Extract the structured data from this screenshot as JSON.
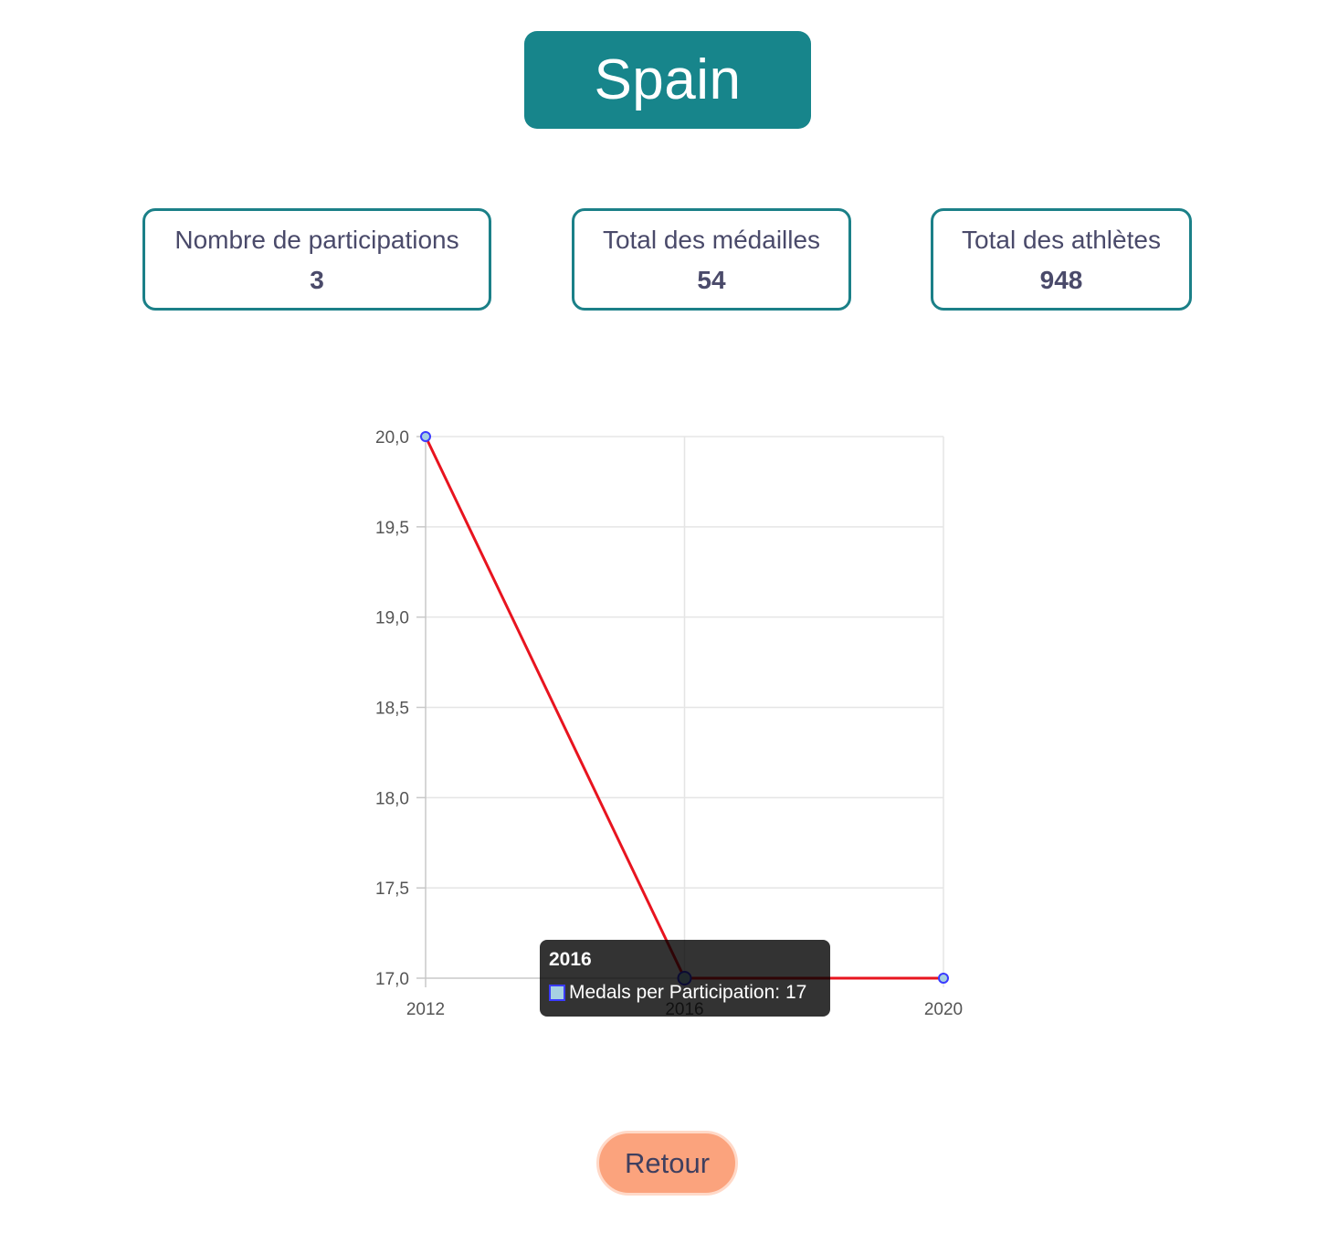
{
  "header": {
    "country_name": "Spain"
  },
  "stats": {
    "participations": {
      "label": "Nombre de participations",
      "value": "3"
    },
    "medals": {
      "label": "Total des médailles",
      "value": "54"
    },
    "athletes": {
      "label": "Total des athlètes",
      "value": "948"
    }
  },
  "chart_data": {
    "type": "line",
    "x": [
      "2012",
      "2016",
      "2020"
    ],
    "series": [
      {
        "name": "Medals per Participation",
        "values": [
          20,
          17,
          17
        ]
      }
    ],
    "y_ticks": [
      "20,0",
      "19,5",
      "19,0",
      "18,5",
      "18,0",
      "17,5",
      "17,0"
    ],
    "ylim": [
      17,
      20
    ],
    "grid": true,
    "line_color": "#e8141f",
    "point_color": "#3b3bff",
    "point_fill": "#a6d0e2",
    "tooltip": {
      "title": "2016",
      "text": "Medals per Participation: 17"
    }
  },
  "actions": {
    "back_label": "Retour"
  }
}
